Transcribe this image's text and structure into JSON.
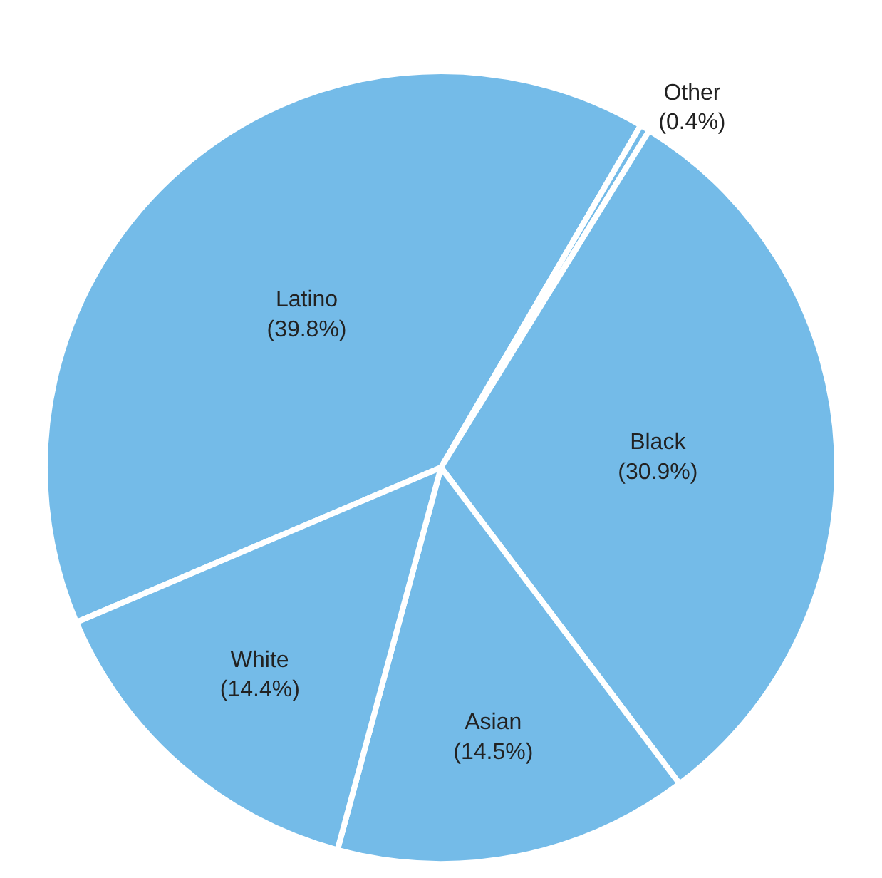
{
  "chart_data": {
    "type": "pie",
    "categories": [
      "Latino",
      "Other",
      "Black",
      "Asian",
      "White"
    ],
    "values": [
      39.8,
      0.4,
      30.9,
      14.5,
      14.4
    ],
    "value_labels": [
      "(39.8%)",
      "(0.4%)",
      "(30.9%)",
      "(14.5%)",
      "(14.4%)"
    ],
    "colors": [
      "#74bbe8",
      "#74bbe8",
      "#74bbe8",
      "#74bbe8",
      "#74bbe8"
    ]
  }
}
